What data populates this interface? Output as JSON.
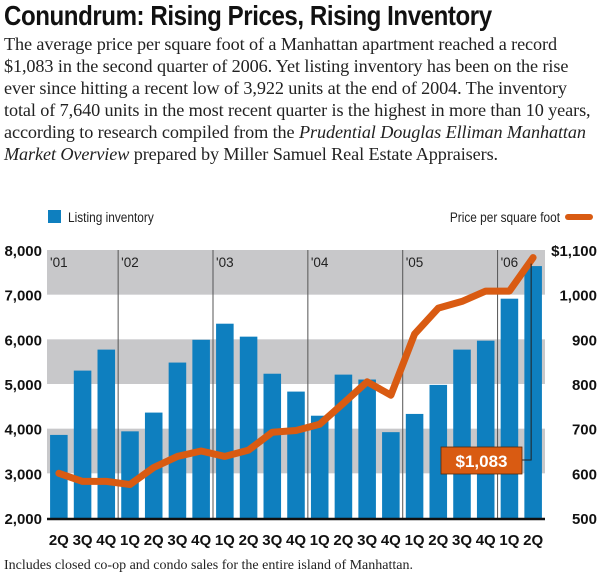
{
  "header": {
    "title": "Conundrum: Rising Prices, Rising Inventory",
    "intro_part1": "The average price per square foot of a Manhattan apartment reached a record $1,083 in the second quarter of 2006. Yet listing inventory has been on the rise ever since hitting a recent low of 3,922 units at the end of 2004. The inventory total of 7,640 units in the most recent quarter is the highest in more than 10 years, according to research compiled from the ",
    "intro_italic": "Prudential Douglas Elliman Manhattan Market Overview",
    "intro_part2": " prepared by Miller Samuel Real Estate Appraisers."
  },
  "footnote": "Includes closed co-op and condo sales for the entire island of Manhattan.",
  "colors": {
    "bar": "#0e7fbf",
    "line": "#d95b12",
    "band": "#c8c8ca",
    "callout_bg": "#d95b12",
    "callout_text": "#ffffff"
  },
  "chart_data": {
    "type": "bar+line",
    "title": "Conundrum: Rising Prices, Rising Inventory",
    "categories": [
      "2Q",
      "3Q",
      "4Q",
      "1Q",
      "2Q",
      "3Q",
      "4Q",
      "1Q",
      "2Q",
      "3Q",
      "4Q",
      "1Q",
      "2Q",
      "3Q",
      "4Q",
      "1Q",
      "2Q",
      "3Q",
      "4Q",
      "1Q",
      "2Q"
    ],
    "year_labels": [
      {
        "label": "'01",
        "start_index": 0
      },
      {
        "label": "'02",
        "start_index": 3
      },
      {
        "label": "'03",
        "start_index": 7
      },
      {
        "label": "'04",
        "start_index": 11
      },
      {
        "label": "'05",
        "start_index": 15
      },
      {
        "label": "'06",
        "start_index": 19
      }
    ],
    "series": [
      {
        "name": "Listing inventory",
        "type": "bar",
        "axis": "left",
        "values": [
          3860,
          5300,
          5770,
          3940,
          4360,
          5480,
          5990,
          6350,
          6060,
          5230,
          4830,
          4290,
          5210,
          5100,
          3922,
          4330,
          4980,
          5770,
          5970,
          6910,
          7640
        ]
      },
      {
        "name": "Price per square foot",
        "type": "line",
        "axis": "right",
        "values": [
          600,
          582,
          582,
          575,
          613,
          638,
          650,
          638,
          652,
          692,
          696,
          710,
          757,
          805,
          775,
          912,
          970,
          985,
          1008,
          1008,
          1083
        ]
      }
    ],
    "left_axis": {
      "ylim": [
        2000,
        8000
      ],
      "ticks": [
        2000,
        3000,
        4000,
        5000,
        6000,
        7000,
        8000
      ],
      "tick_labels": [
        "2,000",
        "3,000",
        "4,000",
        "5,000",
        "6,000",
        "7,000",
        "8,000"
      ]
    },
    "right_axis": {
      "ylim": [
        500,
        1100
      ],
      "ticks": [
        500,
        600,
        700,
        800,
        900,
        1000,
        1100
      ],
      "tick_labels": [
        "500",
        "600",
        "700",
        "800",
        "900",
        "1,000",
        "$1,100"
      ]
    },
    "bands": [
      [
        3000,
        4000
      ],
      [
        5000,
        6000
      ],
      [
        7000,
        8000
      ]
    ],
    "legend": [
      {
        "label": "Listing inventory",
        "marker": "square",
        "placement": "top-left"
      },
      {
        "label": "Price per square foot",
        "marker": "line",
        "placement": "top-right"
      }
    ],
    "annotation": {
      "text": "$1,083",
      "target_index": 20,
      "series": "Price per square foot"
    }
  }
}
